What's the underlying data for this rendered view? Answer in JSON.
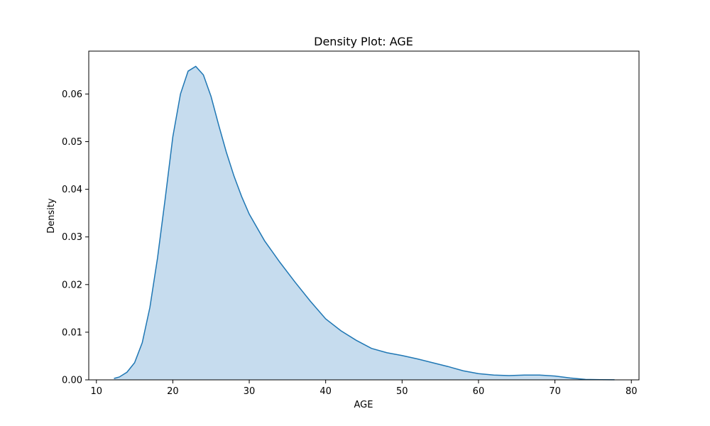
{
  "chart_data": {
    "type": "area",
    "title": "Density Plot: AGE",
    "xlabel": "AGE",
    "ylabel": "Density",
    "xlim": [
      9.0,
      81.0
    ],
    "ylim": [
      0.0,
      0.069
    ],
    "xticks": [
      10,
      20,
      30,
      40,
      50,
      60,
      70,
      80
    ],
    "yticks": [
      0.0,
      0.01,
      0.02,
      0.03,
      0.04,
      0.05,
      0.06
    ],
    "grid": false,
    "legend": "none",
    "colors": {
      "line": "#1f77b4",
      "fill": "#c6dcee"
    },
    "series": [
      {
        "x": [
          12.3,
          13,
          14,
          15,
          16,
          17,
          18,
          19,
          20,
          21,
          22,
          23,
          24,
          25,
          26,
          27,
          28,
          29,
          30,
          32,
          34,
          36,
          38,
          40,
          42,
          44,
          46,
          48,
          50,
          52,
          54,
          56,
          58,
          60,
          62,
          64,
          66,
          68,
          70,
          72,
          74,
          76,
          77.8
        ],
        "y": [
          0.0003,
          0.0006,
          0.0016,
          0.0036,
          0.0078,
          0.0152,
          0.0256,
          0.038,
          0.051,
          0.06,
          0.0648,
          0.0658,
          0.064,
          0.0595,
          0.0535,
          0.0478,
          0.0428,
          0.0385,
          0.0348,
          0.0292,
          0.0247,
          0.0205,
          0.0165,
          0.0128,
          0.0103,
          0.0083,
          0.0066,
          0.0057,
          0.0051,
          0.0044,
          0.0036,
          0.0028,
          0.0019,
          0.0013,
          0.001,
          0.0009,
          0.001,
          0.001,
          0.0008,
          0.0004,
          0.0001,
          3e-05,
          1e-05
        ]
      }
    ]
  }
}
